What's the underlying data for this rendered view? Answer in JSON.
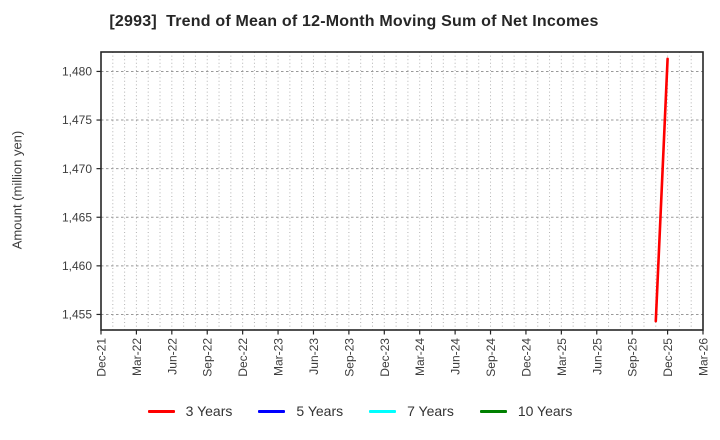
{
  "chart_data": {
    "type": "line",
    "title": "[2993]  Trend of Mean of 12-Month Moving Sum of Net Incomes",
    "ylabel": "Amount (million yen)",
    "xlabel": "",
    "x_tick_labels": [
      "Dec-21",
      "Mar-22",
      "Jun-22",
      "Sep-22",
      "Dec-22",
      "Mar-23",
      "Jun-23",
      "Sep-23",
      "Dec-23",
      "Mar-24",
      "Jun-24",
      "Sep-24",
      "Dec-24",
      "Mar-25",
      "Jun-25",
      "Sep-25",
      "Dec-25",
      "Mar-26"
    ],
    "x_minor_grid_interval_months": 1,
    "y_ticks": [
      1455,
      1460,
      1465,
      1470,
      1475,
      1480
    ],
    "y_tick_labels": [
      "1,455",
      "1,460",
      "1,465",
      "1,470",
      "1,475",
      "1,480"
    ],
    "ylim": [
      1453.4,
      1482.0
    ],
    "grid": "on",
    "legend_position": "bottom-center",
    "frame_color": "#262626",
    "minor_grid_color": "#b3b3b3",
    "major_grid_color": "#999999",
    "tick_label_color": "#3d3d3d",
    "series": [
      {
        "name": "3 Years",
        "color": "#ff0000",
        "points": [
          {
            "month": "Nov-25",
            "value": 1454.3
          },
          {
            "month": "Dec-25",
            "value": 1481.3
          }
        ]
      },
      {
        "name": "5 Years",
        "color": "#0000ff",
        "points": []
      },
      {
        "name": "7 Years",
        "color": "#00ffff",
        "points": []
      },
      {
        "name": "10 Years",
        "color": "#008000",
        "points": []
      }
    ]
  }
}
